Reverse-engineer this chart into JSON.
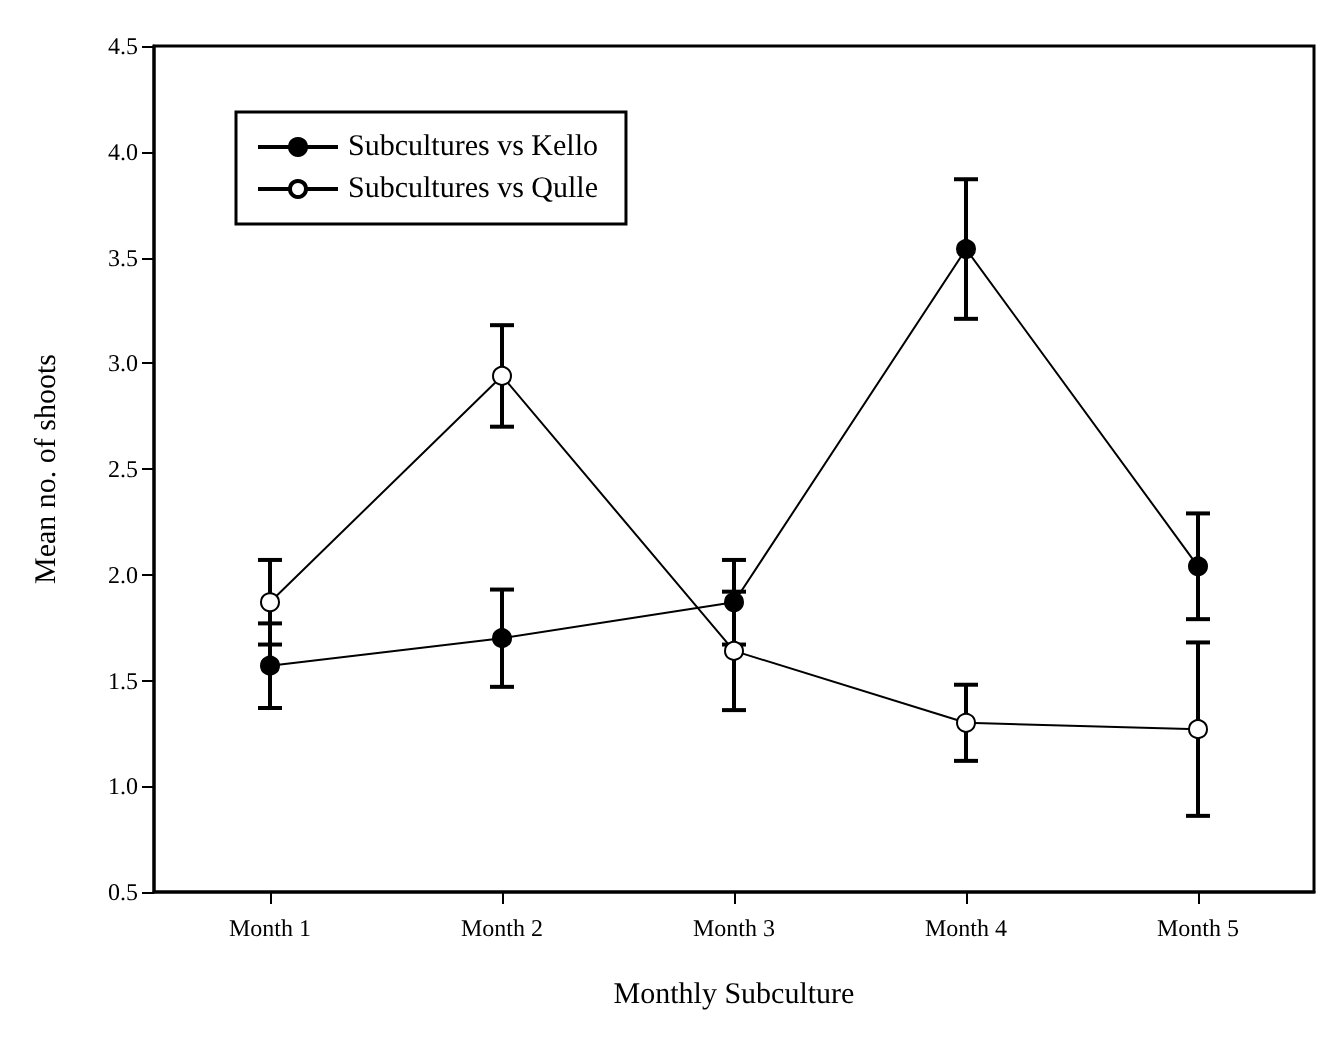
{
  "chart_data": {
    "type": "line",
    "xlabel": "Monthly Subculture",
    "ylabel": "Mean no. of shoots",
    "categories": [
      "Month 1",
      "Month 2",
      "Month 3",
      "Month 4",
      "Month 5"
    ],
    "series": [
      {
        "name": "Subcultures vs Kello",
        "color": "#000000",
        "values": [
          1.57,
          1.7,
          1.87,
          3.54,
          2.04
        ],
        "errors": [
          0.2,
          0.23,
          0.2,
          0.33,
          0.25
        ]
      },
      {
        "name": "Subcultures vs Qulle",
        "color": "#000000",
        "colors": [
          "#ffffff",
          "#ffffff",
          "#ffffff",
          "#ffffff",
          "#ffffff"
        ],
        "values": [
          1.87,
          2.94,
          1.64,
          1.3,
          1.27
        ],
        "errors": [
          0.2,
          0.24,
          0.28,
          0.18,
          0.41
        ]
      }
    ],
    "ylim": [
      0.5,
      4.5
    ],
    "yticks": [
      0.5,
      {
        "value": 1,
        "label": "1.0"
      },
      1.5,
      {
        "value": 2,
        "label": "2.0"
      },
      2.5,
      {
        "value": 3,
        "label": "3.0"
      },
      3.5,
      {
        "value": 4,
        "label": "4.0"
      },
      4.5
    ],
    "grid": false,
    "legend": "top left",
    "marker": "circle",
    "line_style": "solid"
  }
}
